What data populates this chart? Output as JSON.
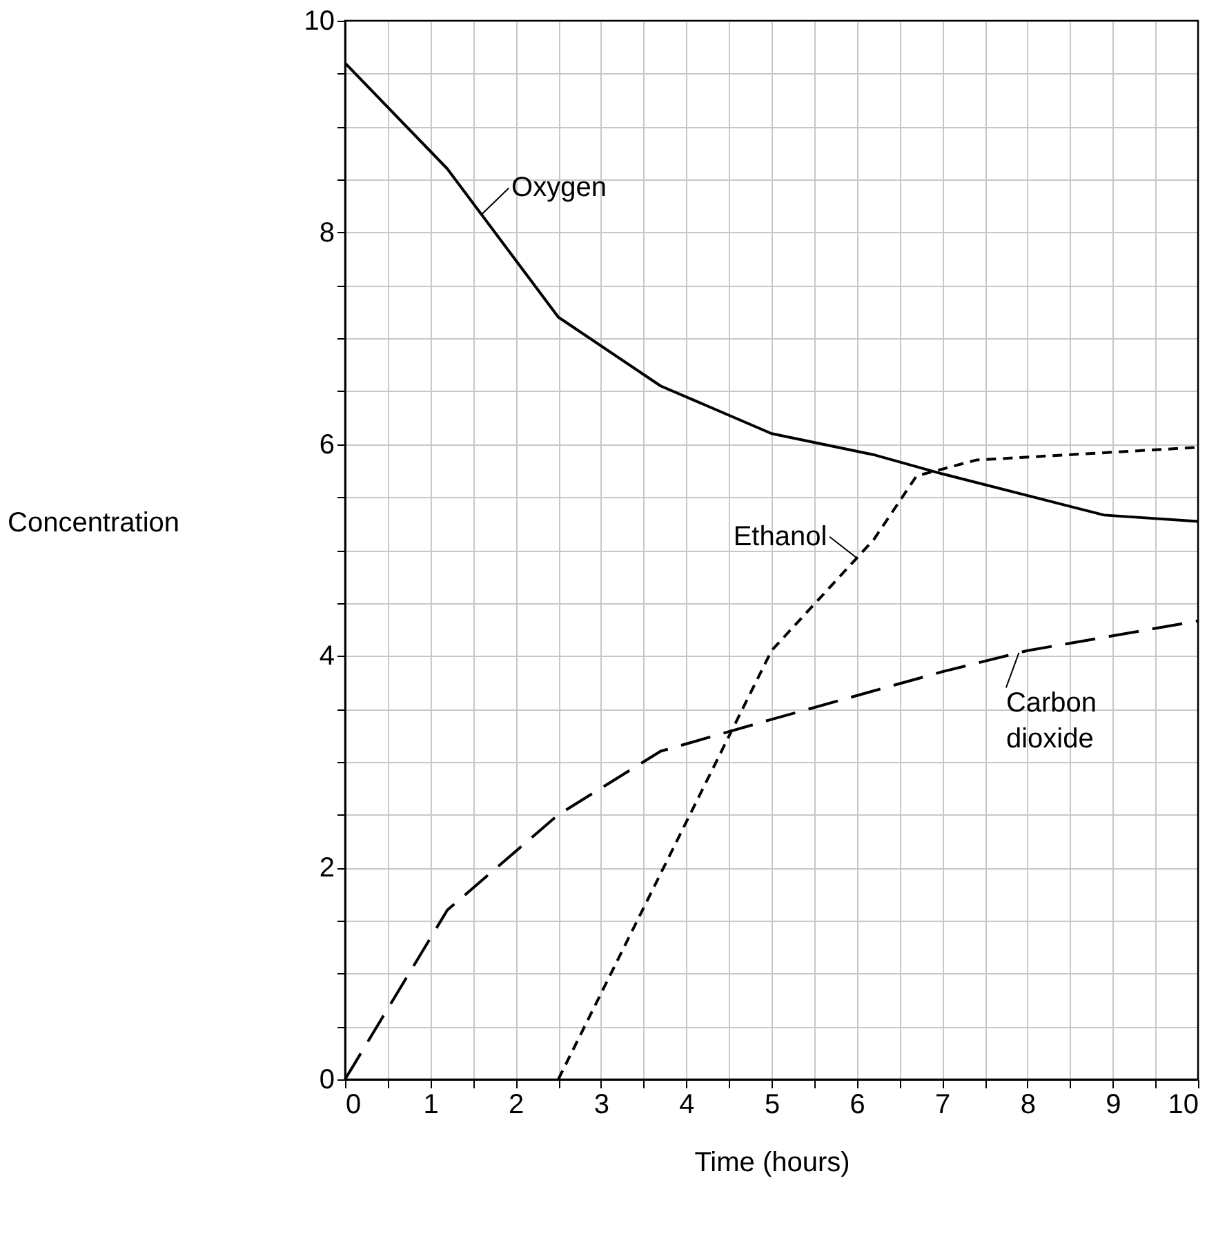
{
  "chart_data": {
    "type": "line",
    "xlabel": "Time (hours)",
    "ylabel": "Concentration",
    "xlim": [
      0,
      10
    ],
    "ylim": [
      0,
      10
    ],
    "xticks": [
      0,
      {
        "value": 0.5,
        "label": null
      },
      1,
      {
        "value": 1.5,
        "label": null
      },
      2,
      {
        "value": 2.5,
        "label": null
      },
      3,
      {
        "value": 3.5,
        "label": null
      },
      4,
      {
        "value": 4.5,
        "label": null
      },
      5,
      {
        "value": 5.5,
        "label": null
      },
      6,
      {
        "value": 6.5,
        "label": null
      },
      7,
      {
        "value": 7.5,
        "label": null
      },
      8,
      {
        "value": 8.5,
        "label": null
      },
      9,
      {
        "value": 9.5,
        "label": null
      },
      10
    ],
    "yticks": [
      0,
      {
        "value": 0.5,
        "label": null
      },
      {
        "value": 1,
        "label": null
      },
      {
        "value": 1.5,
        "label": null
      },
      2,
      {
        "value": 2.5,
        "label": null
      },
      {
        "value": 3,
        "label": null
      },
      {
        "value": 3.5,
        "label": null
      },
      4,
      {
        "value": 4.5,
        "label": null
      },
      {
        "value": 5,
        "label": null
      },
      {
        "value": 5.5,
        "label": null
      },
      6,
      {
        "value": 6.5,
        "label": null
      },
      {
        "value": 7,
        "label": null
      },
      {
        "value": 7.5,
        "label": null
      },
      8,
      {
        "value": 8.5,
        "label": null
      },
      {
        "value": 9,
        "label": null
      },
      {
        "value": 9.5,
        "label": null
      },
      10
    ],
    "grid": true,
    "marker": "none",
    "series": [
      {
        "name": "Oxygen",
        "color": "#000000",
        "line_style": "solid",
        "x": [
          0,
          1.2,
          2.5,
          3.7,
          5,
          6.2,
          7,
          8.9,
          10
        ],
        "values": [
          9.6,
          8.6,
          7.2,
          6.55,
          6.1,
          5.9,
          5.72,
          5.33,
          5.27
        ]
      },
      {
        "name": "Ethanol",
        "color": "#000000",
        "line_style": "dotted",
        "x": [
          2.5,
          5,
          6.2,
          6.7,
          7.4,
          10
        ],
        "values": [
          0,
          4.05,
          5.1,
          5.7,
          5.85,
          5.97
        ]
      },
      {
        "name": "Carbon dioxide",
        "color": "#000000",
        "line_style": "dashed",
        "x": [
          0,
          1.2,
          2.5,
          3.7,
          5,
          7,
          8,
          10
        ],
        "values": [
          0,
          1.6,
          2.5,
          3.1,
          3.4,
          3.85,
          4.05,
          4.33
        ]
      }
    ]
  }
}
